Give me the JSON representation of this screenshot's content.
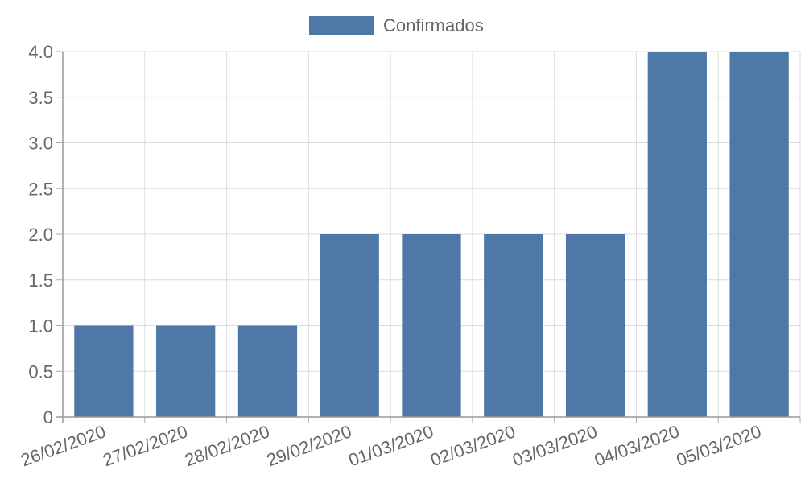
{
  "chart_data": {
    "type": "bar",
    "categories": [
      "26/02/2020",
      "27/02/2020",
      "28/02/2020",
      "29/02/2020",
      "01/03/2020",
      "02/03/2020",
      "03/03/2020",
      "04/03/2020",
      "05/03/2020"
    ],
    "series": [
      {
        "name": "Confirmados",
        "values": [
          1,
          1,
          1,
          2,
          2,
          2,
          2,
          4,
          4
        ],
        "color": "#4e79a7"
      }
    ],
    "title": "",
    "xlabel": "",
    "ylabel": "",
    "ylim": [
      0,
      4
    ],
    "yticks": [
      "0",
      "0.5",
      "1.0",
      "1.5",
      "2.0",
      "2.5",
      "3.0",
      "3.5",
      "4.0"
    ],
    "grid": true,
    "legend": "top-center"
  }
}
